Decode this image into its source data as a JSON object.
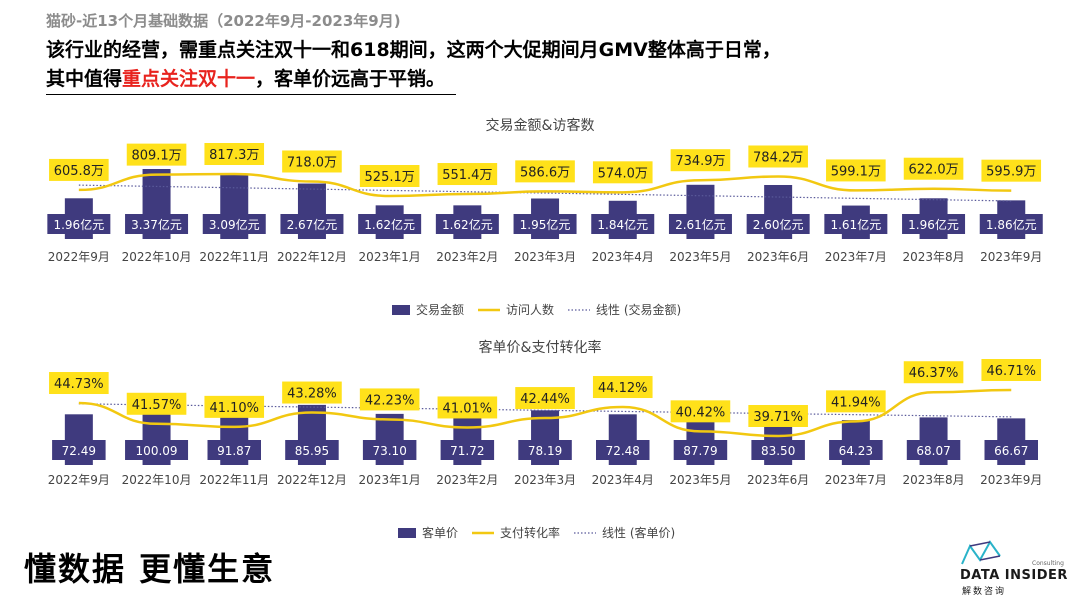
{
  "header": {
    "subtitle": "猫砂-近13个月基础数据（2022年9月-2023年9月)",
    "headline_part1": "该行业的经营，需重点关注双十一和618期间，这两个大促期间月GMV整体高于日常，",
    "headline_part2": "其中值得",
    "headline_highlight": "重点关注双十一",
    "headline_part3": "，客单价远高于平销。"
  },
  "footer": {
    "slogan": "懂数据 更懂生意",
    "brand": "DATA INSIDER",
    "brand_cn": "解数咨询",
    "brand_tag": "Consulting"
  },
  "colors": {
    "bar": "#3f3a7e",
    "line": "#f2c811",
    "label_box": "#ffe11a",
    "trend": "#5a5a9a"
  },
  "chart_data": [
    {
      "type": "bar",
      "title": "交易金额&访客数",
      "categories": [
        "2022年9月",
        "2022年10月",
        "2022年11月",
        "2022年12月",
        "2023年1月",
        "2023年2月",
        "2023年3月",
        "2023年4月",
        "2023年5月",
        "2023年6月",
        "2023年7月",
        "2023年8月",
        "2023年9月"
      ],
      "series": [
        {
          "name": "交易金额",
          "type": "bar",
          "values": [
            1.96,
            3.37,
            3.09,
            2.67,
            1.62,
            1.62,
            1.95,
            1.84,
            2.61,
            2.6,
            1.61,
            1.96,
            1.86
          ],
          "labels": [
            "1.96亿元",
            "3.37亿元",
            "3.09亿元",
            "2.67亿元",
            "1.62亿元",
            "1.62亿元",
            "1.95亿元",
            "1.84亿元",
            "2.61亿元",
            "2.60亿元",
            "1.61亿元",
            "1.96亿元",
            "1.86亿元"
          ]
        },
        {
          "name": "访问人数",
          "type": "line",
          "values": [
            605.8,
            809.1,
            817.3,
            718.0,
            525.1,
            551.4,
            586.6,
            574.0,
            734.9,
            784.2,
            599.1,
            622.0,
            595.9
          ],
          "labels": [
            "605.8万",
            "809.1万",
            "817.3万",
            "718.0万",
            "525.1万",
            "551.4万",
            "586.6万",
            "574.0万",
            "734.9万",
            "784.2万",
            "599.1万",
            "622.0万",
            "595.9万"
          ]
        },
        {
          "name": "线性 (交易金额)",
          "type": "trend"
        }
      ],
      "legend_position": "bottom",
      "grid": false
    },
    {
      "type": "bar",
      "title": "客单价&支付转化率",
      "categories": [
        "2022年9月",
        "2022年10月",
        "2022年11月",
        "2022年12月",
        "2023年1月",
        "2023年2月",
        "2023年3月",
        "2023年4月",
        "2023年5月",
        "2023年6月",
        "2023年7月",
        "2023年8月",
        "2023年9月"
      ],
      "series": [
        {
          "name": "客单价",
          "type": "bar",
          "values": [
            72.49,
            100.09,
            91.87,
            85.95,
            73.1,
            71.72,
            78.19,
            72.48,
            87.79,
            83.5,
            64.23,
            68.07,
            66.67
          ],
          "labels": [
            "72.49",
            "100.09",
            "91.87",
            "85.95",
            "73.10",
            "71.72",
            "78.19",
            "72.48",
            "87.79",
            "83.50",
            "64.23",
            "68.07",
            "66.67"
          ]
        },
        {
          "name": "支付转化率",
          "type": "line",
          "values": [
            44.73,
            41.57,
            41.1,
            43.28,
            42.23,
            41.01,
            42.44,
            44.12,
            40.42,
            39.71,
            41.94,
            46.37,
            46.71
          ],
          "labels": [
            "44.73%",
            "41.57%",
            "41.10%",
            "43.28%",
            "42.23%",
            "41.01%",
            "42.44%",
            "44.12%",
            "40.42%",
            "39.71%",
            "41.94%",
            "46.37%",
            "46.71%"
          ]
        },
        {
          "name": "线性 (客单价)",
          "type": "trend"
        }
      ],
      "legend_position": "bottom",
      "grid": false
    }
  ]
}
